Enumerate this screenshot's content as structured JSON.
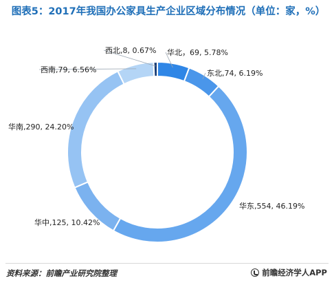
{
  "title": "图表5：2017年我国办公家具生产企业区域分布情况（单位：家，%）",
  "source": "资料来源：前瞻产业研究院整理",
  "brand": "前瞻经济学人APP",
  "colors": {
    "title": "#1f6fb8",
    "segments": [
      "#2f86e6",
      "#4a96ea",
      "#66a7ee",
      "#7bb2ef",
      "#96c3f3",
      "#b4d5f6",
      "#1b3f78"
    ]
  },
  "chart_data": {
    "type": "pie",
    "style": "donut",
    "categories": [
      "华北",
      "东北",
      "华东",
      "华中",
      "华南",
      "西南",
      "西北"
    ],
    "values": [
      69,
      74,
      554,
      125,
      290,
      79,
      8
    ],
    "percents": [
      5.78,
      6.19,
      46.19,
      10.42,
      24.2,
      6.56,
      0.67
    ],
    "labels": [
      "华北，69, 5.78%",
      "东北,74, 6.19%",
      "华东,554, 46.19%",
      "华中,125, 10.42%",
      "华南,290, 24.20%",
      "西南,79, 6.56%",
      "西北,8, 0.67%"
    ]
  }
}
